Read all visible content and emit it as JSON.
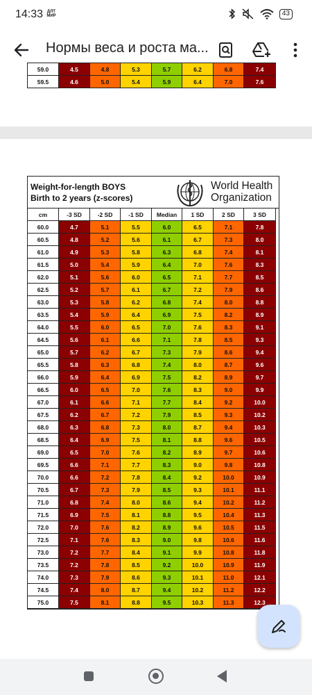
{
  "status": {
    "time": "14:33",
    "carrier": "ДЛТ МИР",
    "battery": "43"
  },
  "appbar": {
    "title": "Нормы веса и роста ма..."
  },
  "top_page_rows": [
    [
      "59.0",
      "4.5",
      "4.8",
      "5.3",
      "5.7",
      "6.2",
      "6.8",
      "7.4"
    ],
    [
      "59.5",
      "4.6",
      "5.0",
      "5.4",
      "5.9",
      "6.4",
      "7.0",
      "7.6"
    ]
  ],
  "chart": {
    "title_line1": "Weight-for-length  BOYS",
    "title_line2": "Birth to 2 years (z-scores)",
    "org_line1": "World Health",
    "org_line2": "Organization",
    "headers": [
      "cm",
      "-3 SD",
      "-2 SD",
      "-1 SD",
      "Median",
      "1 SD",
      "2 SD",
      "3 SD"
    ],
    "colors": {
      "sd3": "#8b0000",
      "sd2": "#ff6600",
      "sd1": "#ffd300",
      "median": "#8fcf00"
    },
    "rows": [
      [
        "60.0",
        "4.7",
        "5.1",
        "5.5",
        "6.0",
        "6.5",
        "7.1",
        "7.8"
      ],
      [
        "60.5",
        "4.8",
        "5.2",
        "5.6",
        "6.1",
        "6.7",
        "7.3",
        "8.0"
      ],
      [
        "61.0",
        "4.9",
        "5.3",
        "5.8",
        "6.3",
        "6.8",
        "7.4",
        "8.1"
      ],
      [
        "61.5",
        "5.0",
        "5.4",
        "5.9",
        "6.4",
        "7.0",
        "7.6",
        "8.3"
      ],
      [
        "62.0",
        "5.1",
        "5.6",
        "6.0",
        "6.5",
        "7.1",
        "7.7",
        "8.5"
      ],
      [
        "62.5",
        "5.2",
        "5.7",
        "6.1",
        "6.7",
        "7.2",
        "7.9",
        "8.6"
      ],
      [
        "63.0",
        "5.3",
        "5.8",
        "6.2",
        "6.8",
        "7.4",
        "8.0",
        "8.8"
      ],
      [
        "63.5",
        "5.4",
        "5.9",
        "6.4",
        "6.9",
        "7.5",
        "8.2",
        "8.9"
      ],
      [
        "64.0",
        "5.5",
        "6.0",
        "6.5",
        "7.0",
        "7.6",
        "8.3",
        "9.1"
      ],
      [
        "64.5",
        "5.6",
        "6.1",
        "6.6",
        "7.1",
        "7.8",
        "8.5",
        "9.3"
      ],
      [
        "65.0",
        "5.7",
        "6.2",
        "6.7",
        "7.3",
        "7.9",
        "8.6",
        "9.4"
      ],
      [
        "65.5",
        "5.8",
        "6.3",
        "6.8",
        "7.4",
        "8.0",
        "8.7",
        "9.6"
      ],
      [
        "66.0",
        "5.9",
        "6.4",
        "6.9",
        "7.5",
        "8.2",
        "8.9",
        "9.7"
      ],
      [
        "66.5",
        "6.0",
        "6.5",
        "7.0",
        "7.6",
        "8.3",
        "9.0",
        "9.9"
      ],
      [
        "67.0",
        "6.1",
        "6.6",
        "7.1",
        "7.7",
        "8.4",
        "9.2",
        "10.0"
      ],
      [
        "67.5",
        "6.2",
        "6.7",
        "7.2",
        "7.9",
        "8.5",
        "9.3",
        "10.2"
      ],
      [
        "68.0",
        "6.3",
        "6.8",
        "7.3",
        "8.0",
        "8.7",
        "9.4",
        "10.3"
      ],
      [
        "68.5",
        "6.4",
        "6.9",
        "7.5",
        "8.1",
        "8.8",
        "9.6",
        "10.5"
      ],
      [
        "69.0",
        "6.5",
        "7.0",
        "7.6",
        "8.2",
        "8.9",
        "9.7",
        "10.6"
      ],
      [
        "69.5",
        "6.6",
        "7.1",
        "7.7",
        "8.3",
        "9.0",
        "9.8",
        "10.8"
      ],
      [
        "70.0",
        "6.6",
        "7.2",
        "7.8",
        "8.4",
        "9.2",
        "10.0",
        "10.9"
      ],
      [
        "70.5",
        "6.7",
        "7.3",
        "7.9",
        "8.5",
        "9.3",
        "10.1",
        "11.1"
      ],
      [
        "71.0",
        "6.8",
        "7.4",
        "8.0",
        "8.6",
        "9.4",
        "10.2",
        "11.2"
      ],
      [
        "71.5",
        "6.9",
        "7.5",
        "8.1",
        "8.8",
        "9.5",
        "10.4",
        "11.3"
      ],
      [
        "72.0",
        "7.0",
        "7.6",
        "8.2",
        "8.9",
        "9.6",
        "10.5",
        "11.5"
      ],
      [
        "72.5",
        "7.1",
        "7.6",
        "8.3",
        "9.0",
        "9.8",
        "10.6",
        "11.6"
      ],
      [
        "73.0",
        "7.2",
        "7.7",
        "8.4",
        "9.1",
        "9.9",
        "10.8",
        "11.8"
      ],
      [
        "73.5",
        "7.2",
        "7.8",
        "8.5",
        "9.2",
        "10.0",
        "10.9",
        "11.9"
      ],
      [
        "74.0",
        "7.3",
        "7.9",
        "8.6",
        "9.3",
        "10.1",
        "11.0",
        "12.1"
      ],
      [
        "74.5",
        "7.4",
        "8.0",
        "8.7",
        "9.4",
        "10.2",
        "11.2",
        "12.2"
      ],
      [
        "75.0",
        "7.5",
        "8.1",
        "8.8",
        "9.5",
        "10.3",
        "11.3",
        "12.3"
      ]
    ]
  },
  "icons": {
    "back": "arrow-back-icon",
    "search": "search-in-document-icon",
    "drive": "add-to-drive-icon",
    "menu": "more-vert-icon",
    "edit": "edit-pen-icon"
  }
}
